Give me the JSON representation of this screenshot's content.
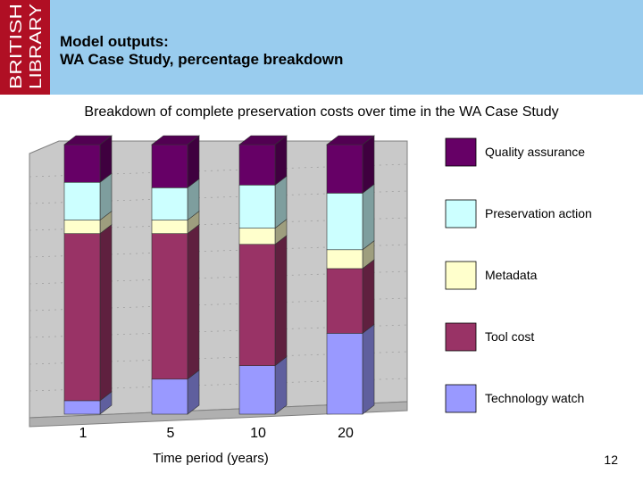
{
  "slide": {
    "logo_lines": [
      "BRITISH",
      "LIBRARY"
    ],
    "title_line1": "Model outputs:",
    "title_line2": "WA Case Study, percentage breakdown",
    "page_number": "12",
    "colors": {
      "header": "#99ccee",
      "logo": "#b00f24"
    }
  },
  "chart_data": {
    "type": "bar",
    "stacked": true,
    "three_d": true,
    "title": "Breakdown of complete preservation costs over time in the WA Case Study",
    "xlabel": "Time period (years)",
    "ylabel": "",
    "ylim": [
      0,
      100
    ],
    "categories": [
      "1",
      "5",
      "10",
      "20"
    ],
    "series": [
      {
        "name": "Technology watch",
        "color": "#9999ff",
        "values": [
          5,
          13,
          18,
          30
        ]
      },
      {
        "name": "Tool cost",
        "color": "#993366",
        "values": [
          62,
          54,
          45,
          24
        ]
      },
      {
        "name": "Metadata",
        "color": "#ffffcc",
        "values": [
          5,
          5,
          6,
          7
        ]
      },
      {
        "name": "Preservation action",
        "color": "#ccffff",
        "values": [
          14,
          12,
          16,
          21
        ]
      },
      {
        "name": "Quality assurance",
        "color": "#660066",
        "values": [
          14,
          16,
          15,
          18
        ]
      }
    ],
    "legend_order": [
      "Quality assurance",
      "Preservation action",
      "Metadata",
      "Tool cost",
      "Technology watch"
    ],
    "legend_position": "right",
    "grid": true
  }
}
